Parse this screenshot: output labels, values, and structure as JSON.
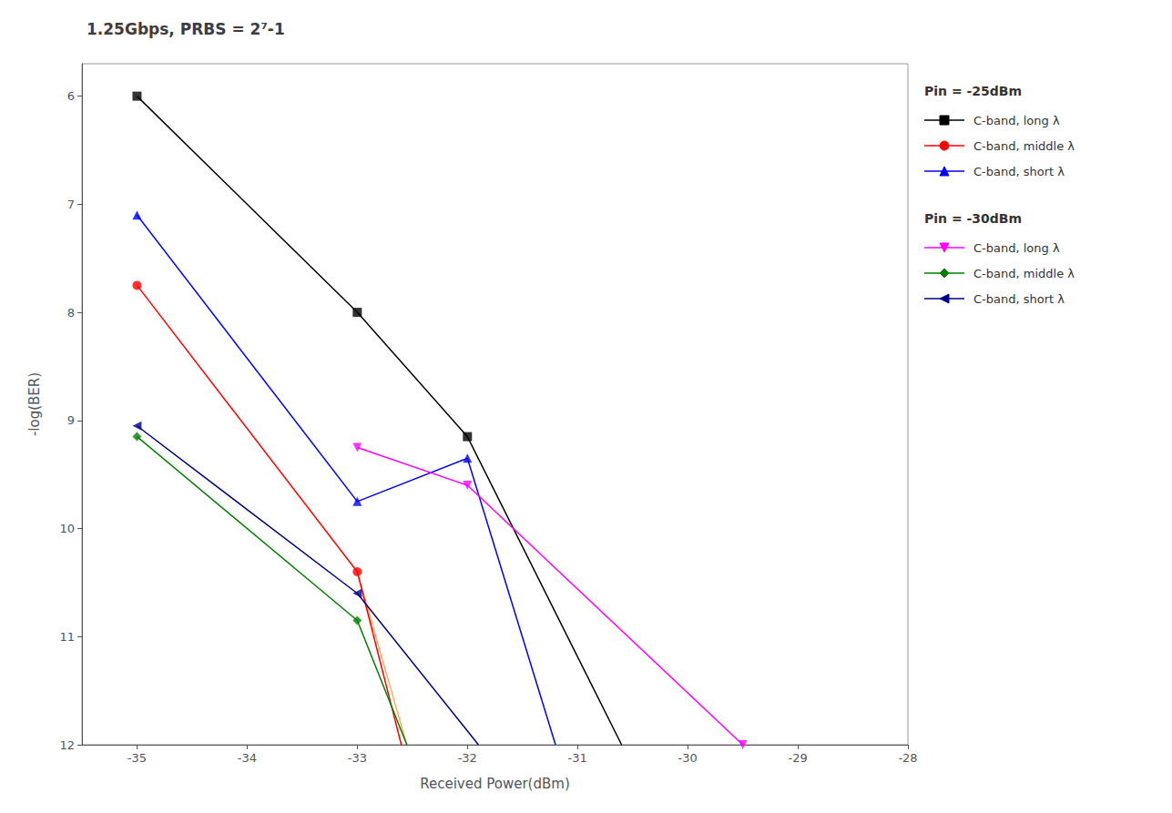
{
  "chart_data": {
    "type": "line",
    "title": "1.25Gbps, PRBS = 2⁷-1",
    "x_label": "Received Power(dBm)",
    "y_label": "-log(BER)",
    "xlim": [
      -35.5,
      -28.0
    ],
    "ylim": [
      12.0,
      5.7
    ],
    "xticks": [
      -35,
      -34,
      -33,
      -32,
      -31,
      -30,
      -29,
      -28
    ],
    "yticks": [
      6,
      7,
      8,
      9,
      10,
      11,
      12
    ],
    "grid": false,
    "series": [
      {
        "name": "C-band, long λ",
        "group": "Pin = -25dBm",
        "color": "#000000",
        "marker": "square",
        "x": [
          -35,
          -33,
          -32
        ],
        "values": [
          6.0,
          8.0,
          9.15
        ],
        "line_x": [
          -35,
          -33,
          -32,
          -30.6
        ],
        "line_values": [
          6.0,
          8.0,
          9.15,
          12.0
        ]
      },
      {
        "name": "C-band, middle λ",
        "group": "Pin = -25dBm",
        "color": "#ff0000",
        "marker": "circle",
        "x": [
          -35,
          -33
        ],
        "values": [
          7.75,
          10.4
        ],
        "line_x": [
          -35,
          -33,
          -32.6
        ],
        "line_values": [
          7.75,
          10.4,
          12.0
        ]
      },
      {
        "name": "C-band, short λ",
        "group": "Pin = -25dBm",
        "color": "#0000ff",
        "marker": "triangle",
        "x": [
          -35,
          -33,
          -32
        ],
        "values": [
          7.1,
          9.75,
          9.35
        ],
        "line_x": [
          -35,
          -33,
          -32,
          -31.2
        ],
        "line_values": [
          7.1,
          9.75,
          9.35,
          12.0
        ]
      },
      {
        "name": "C-band, long λ",
        "group": "Pin = -30dBm",
        "color": "#ff00ff",
        "marker": "triangle-down",
        "x": [
          -33,
          -32,
          -29.5
        ],
        "values": [
          9.25,
          9.6,
          12.0
        ],
        "line_x": [
          -33,
          -32,
          -29.5
        ],
        "line_values": [
          9.25,
          9.6,
          12.0
        ]
      },
      {
        "name": "C-band, middle λ",
        "group": "Pin = -30dBm",
        "color": "#008000",
        "marker": "diamond",
        "x": [
          -35,
          -33
        ],
        "values": [
          9.15,
          10.85
        ],
        "line_x": [
          -35,
          -33,
          -32.55
        ],
        "line_values": [
          9.15,
          10.85,
          12.0
        ]
      },
      {
        "name": "C-band, short λ",
        "group": "Pin = -30dBm",
        "color": "#00008b",
        "marker": "triangle-left",
        "x": [
          -35,
          -33
        ],
        "values": [
          9.05,
          10.6
        ],
        "line_x": [
          -35,
          -33,
          -31.9
        ],
        "line_values": [
          9.05,
          10.6,
          12.0
        ]
      },
      {
        "color": "#ffa040",
        "line_style": "solid",
        "line_x": [
          -33.0,
          -32.55
        ],
        "line_values": [
          10.4,
          12.0
        ]
      }
    ]
  }
}
